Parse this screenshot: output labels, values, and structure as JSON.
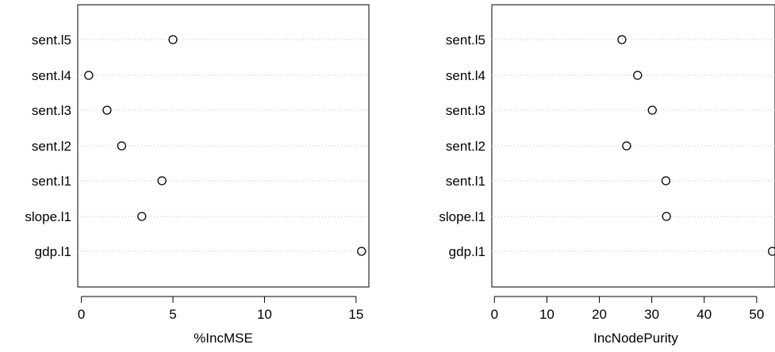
{
  "chart_data": [
    {
      "type": "scatter",
      "categories": [
        "sent.l5",
        "sent.l4",
        "sent.l3",
        "sent.l2",
        "sent.l1",
        "slope.l1",
        "gdp.l1"
      ],
      "values": [
        5.0,
        0.4,
        1.4,
        2.2,
        4.4,
        3.3,
        15.3
      ],
      "xlabel": "%IncMSE",
      "xlim": [
        -0.2,
        15.7
      ],
      "xticks": [
        0,
        5,
        10,
        15
      ],
      "grid": "dotted horizontal per category"
    },
    {
      "type": "scatter",
      "categories": [
        "sent.l5",
        "sent.l4",
        "sent.l3",
        "sent.l2",
        "sent.l1",
        "slope.l1",
        "gdp.l1"
      ],
      "values": [
        24.3,
        27.3,
        30.1,
        25.2,
        32.7,
        32.8,
        53.0
      ],
      "xlabel": "IncNodePurity",
      "xlim": [
        -0.5,
        53.5
      ],
      "xticks": [
        0,
        10,
        20,
        30,
        40,
        50
      ],
      "grid": "dotted horizontal per category"
    }
  ]
}
